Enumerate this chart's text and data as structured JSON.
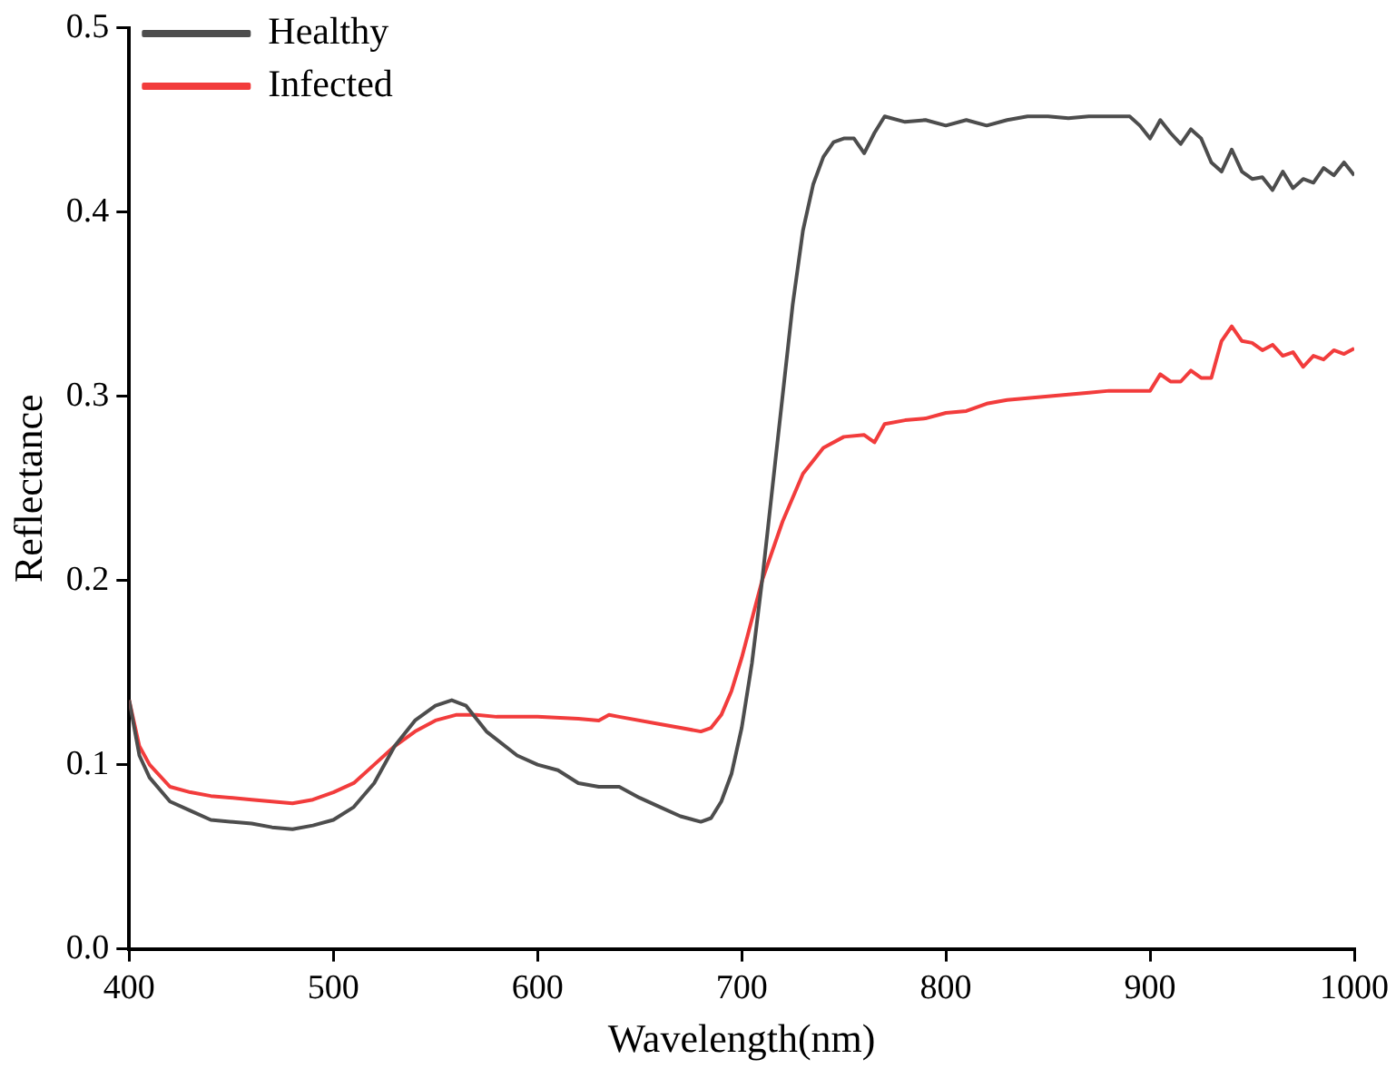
{
  "chart_data": {
    "type": "line",
    "xlabel": "Wavelength(nm)",
    "ylabel": "Reflectance",
    "xlim": [
      400,
      1000
    ],
    "xticks": [
      400,
      500,
      600,
      700,
      800,
      900,
      1000
    ],
    "ylim": [
      0,
      0.5
    ],
    "yticks": [
      {
        "value": 0,
        "label": "0.0"
      },
      {
        "value": 0.1,
        "label": "0.1"
      },
      {
        "value": 0.2,
        "label": "0.2"
      },
      {
        "value": 0.3,
        "label": "0.3"
      },
      {
        "value": 0.4,
        "label": "0.4"
      },
      {
        "value": 0.5,
        "label": "0.5"
      }
    ],
    "grid": false,
    "legend": "top left",
    "marker": "none",
    "line_style": "solid",
    "series": [
      {
        "name": "Healthy",
        "color": "#4d4d4d",
        "x": [
          400,
          405,
          410,
          420,
          430,
          440,
          460,
          470,
          480,
          490,
          500,
          510,
          520,
          530,
          540,
          550,
          558,
          565,
          575,
          590,
          600,
          610,
          620,
          630,
          640,
          650,
          660,
          670,
          680,
          685,
          690,
          695,
          700,
          705,
          710,
          715,
          720,
          725,
          730,
          735,
          740,
          745,
          750,
          755,
          760,
          765,
          770,
          780,
          790,
          800,
          810,
          820,
          830,
          840,
          850,
          860,
          870,
          880,
          890,
          895,
          900,
          905,
          910,
          915,
          920,
          925,
          930,
          935,
          940,
          945,
          950,
          955,
          960,
          965,
          970,
          975,
          980,
          985,
          990,
          995,
          1000
        ],
        "values": [
          0.135,
          0.105,
          0.093,
          0.08,
          0.075,
          0.07,
          0.068,
          0.066,
          0.065,
          0.067,
          0.07,
          0.077,
          0.09,
          0.11,
          0.124,
          0.132,
          0.135,
          0.132,
          0.118,
          0.105,
          0.1,
          0.097,
          0.09,
          0.088,
          0.088,
          0.082,
          0.077,
          0.072,
          0.069,
          0.071,
          0.08,
          0.095,
          0.12,
          0.155,
          0.2,
          0.25,
          0.3,
          0.35,
          0.39,
          0.415,
          0.43,
          0.438,
          0.44,
          0.44,
          0.432,
          0.443,
          0.452,
          0.449,
          0.45,
          0.447,
          0.45,
          0.447,
          0.45,
          0.452,
          0.452,
          0.451,
          0.452,
          0.452,
          0.452,
          0.447,
          0.44,
          0.45,
          0.443,
          0.437,
          0.445,
          0.44,
          0.427,
          0.422,
          0.434,
          0.422,
          0.418,
          0.419,
          0.412,
          0.422,
          0.413,
          0.418,
          0.416,
          0.424,
          0.42,
          0.427,
          0.42
        ]
      },
      {
        "name": "Infected",
        "color": "#f23c3c",
        "x": [
          400,
          405,
          410,
          420,
          430,
          440,
          460,
          480,
          490,
          500,
          510,
          520,
          530,
          540,
          550,
          560,
          570,
          580,
          600,
          620,
          630,
          635,
          640,
          660,
          670,
          680,
          685,
          690,
          695,
          700,
          710,
          720,
          730,
          740,
          750,
          760,
          765,
          770,
          780,
          790,
          800,
          810,
          820,
          830,
          840,
          850,
          860,
          870,
          880,
          890,
          900,
          905,
          910,
          915,
          920,
          925,
          930,
          935,
          940,
          945,
          950,
          955,
          960,
          965,
          970,
          975,
          980,
          985,
          990,
          995,
          1000
        ],
        "values": [
          0.135,
          0.11,
          0.1,
          0.088,
          0.085,
          0.083,
          0.081,
          0.079,
          0.081,
          0.085,
          0.09,
          0.1,
          0.11,
          0.118,
          0.124,
          0.127,
          0.127,
          0.126,
          0.126,
          0.125,
          0.124,
          0.127,
          0.126,
          0.122,
          0.12,
          0.118,
          0.12,
          0.127,
          0.14,
          0.158,
          0.2,
          0.232,
          0.258,
          0.272,
          0.278,
          0.279,
          0.275,
          0.285,
          0.287,
          0.288,
          0.291,
          0.292,
          0.296,
          0.298,
          0.299,
          0.3,
          0.301,
          0.302,
          0.303,
          0.303,
          0.303,
          0.312,
          0.308,
          0.308,
          0.314,
          0.31,
          0.31,
          0.33,
          0.338,
          0.33,
          0.329,
          0.325,
          0.328,
          0.322,
          0.324,
          0.316,
          0.322,
          0.32,
          0.325,
          0.323,
          0.326
        ]
      }
    ]
  }
}
